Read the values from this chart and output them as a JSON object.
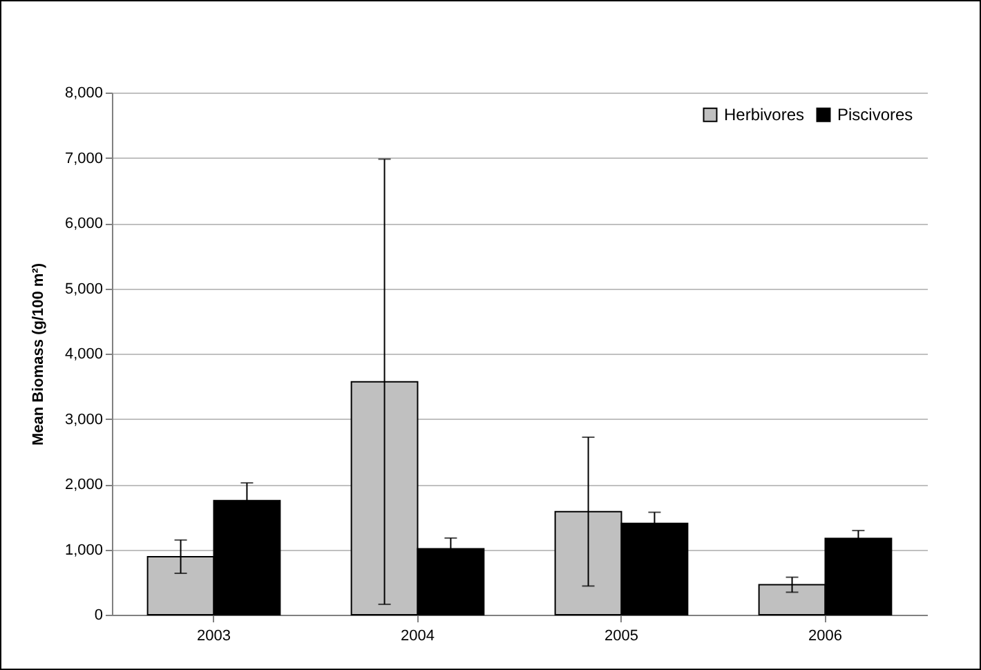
{
  "chart_data": {
    "type": "bar",
    "ylabel": "Mean Biomass (g/100 m²)",
    "categories": [
      "2003",
      "2004",
      "2005",
      "2006"
    ],
    "series": [
      {
        "name": "Herbivores",
        "color": "#c0c0c0",
        "values": [
          890,
          3570,
          1580,
          460
        ],
        "errors": [
          255,
          3410,
          1140,
          115
        ]
      },
      {
        "name": "Piscivores",
        "color": "#000000",
        "values": [
          1750,
          1010,
          1400,
          1170
        ],
        "errors": [
          270,
          165,
          170,
          120
        ]
      }
    ],
    "ylim": [
      0,
      8000
    ],
    "yticks": [
      0,
      {
        "value": 1000,
        "label": "1,000"
      },
      {
        "value": 2000,
        "label": "2,000"
      },
      {
        "value": 3000,
        "label": "3,000"
      },
      {
        "value": 4000,
        "label": "4,000"
      },
      {
        "value": 5000,
        "label": "5,000"
      },
      {
        "value": 6000,
        "label": "6,000"
      },
      {
        "value": 7000,
        "label": "7,000"
      },
      {
        "value": 8000,
        "label": "8,000"
      }
    ],
    "grid": "y",
    "legend": "top right"
  }
}
